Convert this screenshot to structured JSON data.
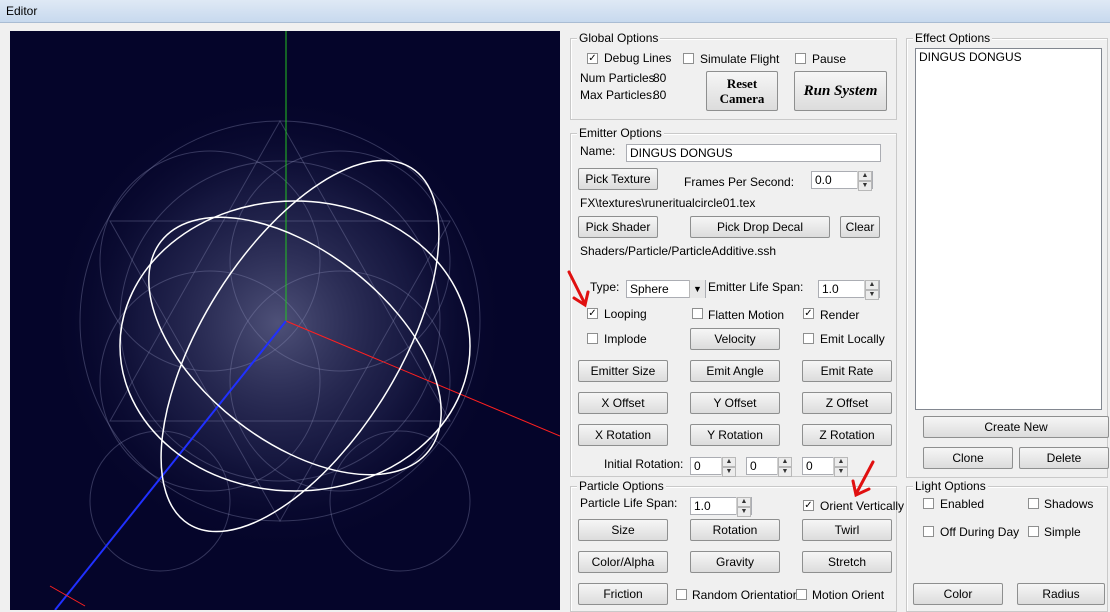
{
  "window": {
    "title": "Editor"
  },
  "global": {
    "label": "Global Options",
    "debug_lines": "Debug Lines",
    "debug_lines_checked": true,
    "simulate_flight": "Simulate Flight",
    "pause": "Pause",
    "num_particles_label": "Num Particles",
    "num_particles": "80",
    "max_particles_label": "Max Particles:",
    "max_particles": "80",
    "reset_camera_line1": "Reset",
    "reset_camera_line2": "Camera",
    "run_system": "Run System"
  },
  "emitter": {
    "label": "Emitter Options",
    "name_label": "Name:",
    "name_value": "DINGUS DONGUS",
    "pick_texture": "Pick Texture",
    "fps_label": "Frames Per Second:",
    "fps_value": "0.0",
    "texture_path": "FX\\textures\\runeritualcircle01.tex",
    "pick_shader": "Pick Shader",
    "pick_drop_decal": "Pick Drop Decal",
    "clear": "Clear",
    "shader_path": "Shaders/Particle/ParticleAdditive.ssh",
    "type_label": "Type:",
    "type_value": "Sphere",
    "life_span_label": "Emitter Life Span:",
    "life_span_value": "1.0",
    "looping": "Looping",
    "flatten_motion": "Flatten Motion",
    "render": "Render",
    "implode": "Implode",
    "velocity": "Velocity",
    "emit_locally": "Emit Locally",
    "emitter_size": "Emitter Size",
    "emit_angle": "Emit Angle",
    "emit_rate": "Emit Rate",
    "x_offset": "X Offset",
    "y_offset": "Y Offset",
    "z_offset": "Z Offset",
    "x_rotation": "X Rotation",
    "y_rotation": "Y Rotation",
    "z_rotation": "Z Rotation",
    "initial_rotation_label": "Initial Rotation:",
    "init_rot_x": "0",
    "init_rot_y": "0",
    "init_rot_z": "0"
  },
  "particle": {
    "label": "Particle Options",
    "life_span_label": "Particle Life Span:",
    "life_span_value": "1.0",
    "orient_vertically": "Orient Vertically",
    "size": "Size",
    "rotation": "Rotation",
    "twirl": "Twirl",
    "color_alpha": "Color/Alpha",
    "gravity": "Gravity",
    "stretch": "Stretch",
    "friction": "Friction",
    "random_orientation": "Random Orientation",
    "motion_orient": "Motion Orient"
  },
  "effect": {
    "label": "Effect Options",
    "items": [
      "DINGUS DONGUS"
    ],
    "create_new": "Create New",
    "clone": "Clone",
    "delete": "Delete"
  },
  "light": {
    "label": "Light Options",
    "enabled": "Enabled",
    "shadows": "Shadows",
    "off_during_day": "Off During Day",
    "simple": "Simple",
    "color": "Color",
    "radius": "Radius"
  },
  "check_mark": "✓",
  "colors": {
    "viewport_bg": "#05052a",
    "annotation_arrow": "#e01010",
    "axis_x": "#ff2020",
    "axis_y": "#22c022",
    "axis_z": "#2030ff"
  }
}
